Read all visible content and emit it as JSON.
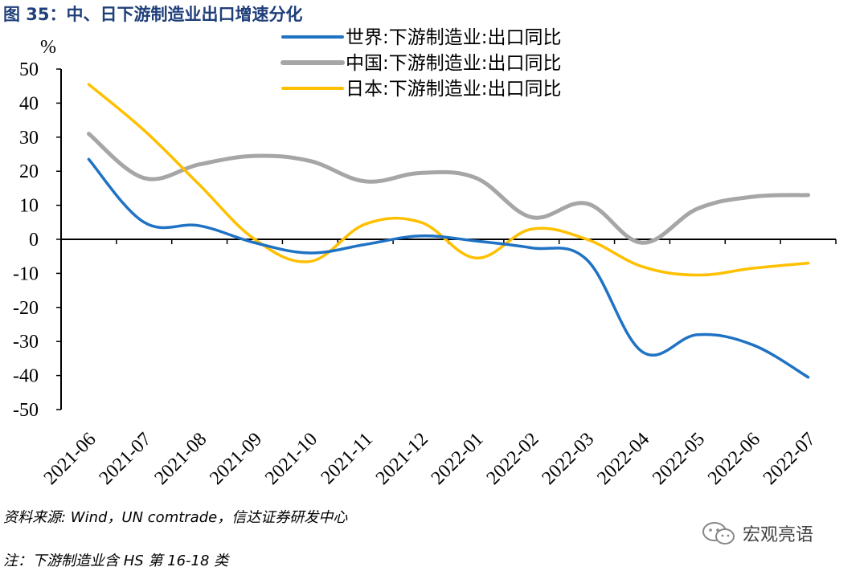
{
  "figure_title": "图 35：中、日下游制造业出口增速分化",
  "source_note": "资料来源: Wind，UN comtrade，信达证券研发中心",
  "footnote": "注：下游制造业含 HS 第 16-18 类",
  "watermark": "宏观亮语",
  "chart_data": {
    "type": "line",
    "ylabel": "%",
    "ylim": [
      -50,
      50
    ],
    "yticks": [
      50,
      40,
      30,
      20,
      10,
      0,
      -10,
      -20,
      -30,
      -40,
      -50
    ],
    "categories": [
      "2021-06",
      "2021-07",
      "2021-08",
      "2021-09",
      "2021-10",
      "2021-11",
      "2021-12",
      "2022-01",
      "2022-02",
      "2022-03",
      "2022-04",
      "2022-05",
      "2022-06",
      "2022-07"
    ],
    "legend_position": "top-right",
    "series": [
      {
        "name": "世界:下游制造业:出口同比",
        "color": "#1f72c4",
        "values": [
          23.5,
          5,
          4,
          -1,
          -4,
          -1.5,
          1,
          -0.5,
          -2.5,
          -6,
          -33,
          -28,
          -31,
          -40.5
        ]
      },
      {
        "name": "中国:下游制造业:出口同比",
        "color": "#a6a6a6",
        "values": [
          31,
          18,
          22,
          24.5,
          23,
          17,
          19.5,
          18,
          6.5,
          10.5,
          -1,
          9,
          12.5,
          13
        ]
      },
      {
        "name": "日本:下游制造业:出口同比",
        "color": "#ffc000",
        "values": [
          45.5,
          32,
          16,
          0,
          -6.5,
          4.5,
          5,
          -5.5,
          3,
          0,
          -8,
          -10.5,
          -8.5,
          -7
        ]
      }
    ]
  }
}
